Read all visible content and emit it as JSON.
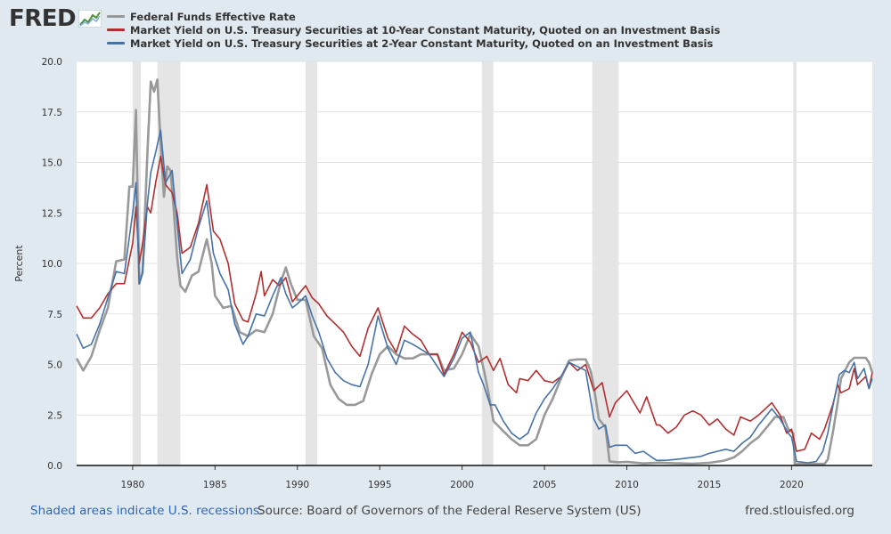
{
  "logo": {
    "text": "FRED"
  },
  "footer": {
    "note": "Shaded areas indicate U.S. recessions.",
    "source": "Source: Board of Governors of the Federal Reserve System (US)",
    "url": "fred.stlouisfed.org"
  },
  "chart_data": {
    "type": "line",
    "ylabel": "Percent",
    "ylim": [
      0,
      20
    ],
    "xlim": [
      1976.6,
      2024.9
    ],
    "yticks": [
      "0.0",
      "2.5",
      "5.0",
      "7.5",
      "10.0",
      "12.5",
      "15.0",
      "17.5",
      "20.0"
    ],
    "xticks": [
      "1980",
      "1985",
      "1990",
      "1995",
      "2000",
      "2005",
      "2010",
      "2015",
      "2020"
    ],
    "grid": true,
    "legend_position": "top",
    "recessions": [
      [
        1980.0,
        1980.5
      ],
      [
        1981.5,
        1982.9
      ],
      [
        1990.5,
        1991.2
      ],
      [
        2001.2,
        2001.9
      ],
      [
        2007.9,
        2009.5
      ],
      [
        2020.1,
        2020.3
      ]
    ],
    "series": [
      {
        "name": "Federal Funds Effective Rate",
        "color": "#999999",
        "x": [
          1976.6,
          1977.0,
          1977.5,
          1978.0,
          1978.5,
          1979.0,
          1979.5,
          1979.8,
          1980.0,
          1980.2,
          1980.4,
          1980.6,
          1980.9,
          1981.1,
          1981.3,
          1981.5,
          1981.7,
          1981.9,
          1982.1,
          1982.3,
          1982.5,
          1982.7,
          1982.9,
          1983.2,
          1983.6,
          1984.0,
          1984.5,
          1984.8,
          1985.0,
          1985.5,
          1986.0,
          1986.5,
          1987.0,
          1987.5,
          1988.0,
          1988.5,
          1989.0,
          1989.3,
          1989.6,
          1990.0,
          1990.5,
          1991.0,
          1991.5,
          1992.0,
          1992.5,
          1993.0,
          1993.5,
          1994.0,
          1994.5,
          1995.0,
          1995.5,
          1996.0,
          1996.5,
          1997.0,
          1997.5,
          1998.0,
          1998.5,
          1998.9,
          1999.5,
          2000.0,
          2000.5,
          2001.0,
          2001.3,
          2001.6,
          2001.9,
          2002.5,
          2003.0,
          2003.5,
          2004.0,
          2004.5,
          2005.0,
          2005.5,
          2006.0,
          2006.5,
          2007.0,
          2007.5,
          2007.8,
          2008.0,
          2008.3,
          2008.7,
          2008.95,
          2009.5,
          2010.0,
          2011.0,
          2012.0,
          2013.0,
          2014.0,
          2015.0,
          2015.9,
          2016.5,
          2017.0,
          2017.5,
          2018.0,
          2018.5,
          2019.0,
          2019.5,
          2019.8,
          2020.1,
          2020.2,
          2020.5,
          2021.0,
          2021.5,
          2022.0,
          2022.2,
          2022.5,
          2022.8,
          2023.0,
          2023.5,
          2023.8,
          2024.0,
          2024.5,
          2024.7,
          2024.9
        ],
        "values": [
          5.3,
          4.7,
          5.4,
          6.7,
          7.8,
          10.1,
          10.2,
          13.8,
          13.8,
          17.6,
          9.0,
          9.6,
          15.5,
          19.0,
          18.5,
          19.1,
          15.9,
          13.3,
          14.8,
          14.6,
          12.6,
          10.3,
          8.9,
          8.6,
          9.4,
          9.6,
          11.2,
          10.0,
          8.4,
          7.8,
          7.9,
          6.6,
          6.4,
          6.7,
          6.6,
          7.5,
          9.1,
          9.8,
          9.0,
          8.2,
          8.2,
          6.4,
          5.8,
          4.0,
          3.3,
          3.0,
          3.0,
          3.2,
          4.5,
          5.5,
          5.9,
          5.5,
          5.3,
          5.3,
          5.5,
          5.5,
          5.5,
          4.7,
          4.8,
          5.5,
          6.5,
          5.9,
          4.8,
          3.6,
          2.2,
          1.7,
          1.3,
          1.0,
          1.0,
          1.3,
          2.5,
          3.3,
          4.3,
          5.2,
          5.25,
          5.25,
          4.7,
          3.9,
          2.3,
          1.9,
          0.2,
          0.16,
          0.18,
          0.1,
          0.14,
          0.11,
          0.09,
          0.13,
          0.24,
          0.4,
          0.7,
          1.1,
          1.4,
          1.9,
          2.4,
          2.4,
          1.8,
          1.6,
          0.05,
          0.09,
          0.08,
          0.08,
          0.08,
          0.3,
          1.6,
          3.1,
          4.3,
          5.1,
          5.33,
          5.33,
          5.33,
          5.1,
          4.6
        ]
      },
      {
        "name": "Market Yield on U.S. Treasury Securities at 10-Year Constant Maturity, Quoted on an Investment Basis",
        "color": "#b22f2f",
        "x": [
          1976.6,
          1977.0,
          1977.5,
          1978.0,
          1978.5,
          1979.0,
          1979.5,
          1980.0,
          1980.2,
          1980.4,
          1980.6,
          1980.9,
          1981.1,
          1981.4,
          1981.7,
          1982.0,
          1982.4,
          1982.7,
          1983.0,
          1983.5,
          1984.0,
          1984.5,
          1984.9,
          1985.3,
          1985.8,
          1986.2,
          1986.7,
          1987.0,
          1987.5,
          1987.8,
          1988.0,
          1988.5,
          1988.9,
          1989.3,
          1989.7,
          1990.0,
          1990.5,
          1990.9,
          1991.3,
          1991.8,
          1992.3,
          1992.8,
          1993.3,
          1993.8,
          1994.3,
          1994.9,
          1995.5,
          1996.0,
          1996.5,
          1997.0,
          1997.5,
          1998.0,
          1998.5,
          1998.9,
          1999.5,
          2000.0,
          2000.5,
          2001.0,
          2001.5,
          2001.9,
          2002.3,
          2002.8,
          2003.3,
          2003.5,
          2004.0,
          2004.5,
          2005.0,
          2005.5,
          2006.0,
          2006.5,
          2007.0,
          2007.5,
          2008.0,
          2008.5,
          2008.95,
          2009.3,
          2010.0,
          2010.8,
          2011.2,
          2011.8,
          2012.0,
          2012.5,
          2013.0,
          2013.5,
          2014.0,
          2014.5,
          2015.0,
          2015.5,
          2016.0,
          2016.5,
          2016.9,
          2017.5,
          2018.0,
          2018.8,
          2019.3,
          2019.7,
          2020.0,
          2020.3,
          2020.8,
          2021.2,
          2021.7,
          2022.0,
          2022.5,
          2022.8,
          2023.0,
          2023.5,
          2023.8,
          2024.0,
          2024.5,
          2024.7,
          2024.9
        ],
        "values": [
          7.9,
          7.3,
          7.3,
          7.8,
          8.5,
          9.0,
          9.0,
          11.0,
          12.8,
          10.0,
          11.0,
          12.8,
          12.5,
          14.0,
          15.3,
          13.9,
          13.5,
          12.5,
          10.5,
          10.8,
          12.0,
          13.9,
          11.6,
          11.2,
          10.0,
          8.0,
          7.2,
          7.1,
          8.5,
          9.6,
          8.4,
          9.2,
          8.9,
          9.3,
          8.1,
          8.4,
          8.9,
          8.3,
          8.0,
          7.4,
          7.0,
          6.6,
          5.9,
          5.4,
          6.8,
          7.8,
          6.3,
          5.6,
          6.9,
          6.5,
          6.2,
          5.5,
          5.5,
          4.5,
          5.5,
          6.6,
          6.1,
          5.1,
          5.4,
          4.7,
          5.3,
          4.0,
          3.6,
          4.3,
          4.2,
          4.7,
          4.2,
          4.1,
          4.4,
          5.1,
          4.7,
          5.0,
          3.7,
          4.1,
          2.4,
          3.1,
          3.7,
          2.6,
          3.4,
          2.0,
          2.0,
          1.6,
          1.9,
          2.5,
          2.7,
          2.5,
          2.0,
          2.3,
          1.8,
          1.5,
          2.4,
          2.2,
          2.5,
          3.1,
          2.5,
          1.6,
          1.8,
          0.7,
          0.8,
          1.6,
          1.3,
          1.8,
          3.0,
          4.0,
          3.6,
          3.8,
          4.8,
          4.0,
          4.4,
          3.8,
          4.6
        ]
      },
      {
        "name": "Market Yield on U.S. Treasury Securities at 2-Year Constant Maturity, Quoted on an Investment Basis",
        "color": "#4572a7",
        "x": [
          1976.6,
          1977.0,
          1977.5,
          1978.0,
          1978.5,
          1979.0,
          1979.5,
          1980.0,
          1980.2,
          1980.4,
          1980.6,
          1980.9,
          1981.1,
          1981.4,
          1981.7,
          1982.0,
          1982.4,
          1982.7,
          1983.0,
          1983.5,
          1984.0,
          1984.5,
          1984.9,
          1985.3,
          1985.8,
          1986.2,
          1986.7,
          1987.0,
          1987.5,
          1988.0,
          1988.5,
          1989.0,
          1989.3,
          1989.7,
          1990.0,
          1990.5,
          1990.9,
          1991.3,
          1991.8,
          1992.3,
          1992.8,
          1993.3,
          1993.8,
          1994.3,
          1994.9,
          1995.5,
          1996.0,
          1996.5,
          1997.0,
          1998.0,
          1998.9,
          1999.5,
          2000.0,
          2000.5,
          2001.0,
          2001.3,
          2001.7,
          2002.0,
          2002.5,
          2003.0,
          2003.5,
          2004.0,
          2004.5,
          2005.0,
          2005.5,
          2006.0,
          2006.5,
          2007.0,
          2007.5,
          2008.0,
          2008.3,
          2008.7,
          2008.95,
          2009.3,
          2010.0,
          2010.5,
          2011.0,
          2011.8,
          2012.5,
          2013.5,
          2014.5,
          2015.0,
          2015.5,
          2016.0,
          2016.5,
          2017.0,
          2017.5,
          2018.0,
          2018.8,
          2019.3,
          2019.8,
          2020.0,
          2020.3,
          2021.0,
          2021.5,
          2021.9,
          2022.2,
          2022.5,
          2022.9,
          2023.2,
          2023.5,
          2023.8,
          2024.0,
          2024.4,
          2024.7,
          2024.9
        ],
        "values": [
          6.5,
          5.8,
          6.0,
          7.0,
          8.3,
          9.6,
          9.5,
          12.5,
          14.0,
          9.0,
          9.5,
          13.0,
          14.5,
          15.5,
          16.6,
          14.0,
          14.6,
          12.0,
          9.5,
          10.2,
          11.8,
          13.1,
          10.5,
          9.5,
          8.7,
          7.0,
          6.0,
          6.4,
          7.5,
          7.4,
          8.4,
          9.3,
          8.5,
          7.8,
          8.0,
          8.4,
          7.4,
          6.6,
          5.3,
          4.6,
          4.2,
          4.0,
          3.9,
          5.0,
          7.4,
          5.8,
          5.0,
          6.2,
          6.0,
          5.5,
          4.4,
          5.3,
          6.3,
          6.6,
          4.6,
          4.0,
          3.0,
          3.0,
          2.2,
          1.6,
          1.3,
          1.6,
          2.6,
          3.3,
          3.8,
          4.4,
          5.1,
          4.9,
          4.7,
          2.3,
          1.8,
          2.0,
          0.9,
          1.0,
          1.0,
          0.6,
          0.7,
          0.25,
          0.26,
          0.35,
          0.45,
          0.6,
          0.7,
          0.8,
          0.7,
          1.1,
          1.4,
          2.0,
          2.8,
          2.3,
          1.6,
          1.4,
          0.2,
          0.13,
          0.2,
          0.7,
          1.6,
          2.9,
          4.5,
          4.7,
          4.6,
          5.1,
          4.3,
          4.8,
          3.8,
          4.3
        ]
      }
    ]
  }
}
